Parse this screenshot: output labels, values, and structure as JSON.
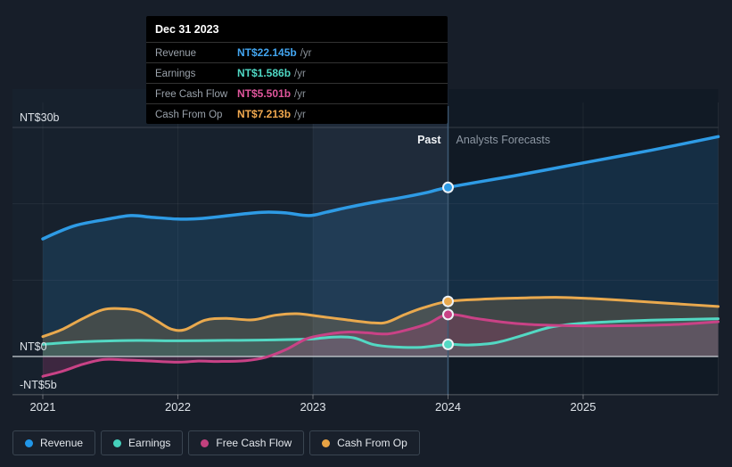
{
  "tooltip": {
    "title": "Dec 31 2023",
    "rows": [
      {
        "label": "Revenue",
        "value": "NT$22.145b",
        "suffix": "/yr",
        "color": "#42a5f0"
      },
      {
        "label": "Earnings",
        "value": "NT$1.586b",
        "suffix": "/yr",
        "color": "#4fd8c4"
      },
      {
        "label": "Free Cash Flow",
        "value": "NT$5.501b",
        "suffix": "/yr",
        "color": "#e0569c"
      },
      {
        "label": "Cash From Op",
        "value": "NT$7.213b",
        "suffix": "/yr",
        "color": "#f2a94f"
      }
    ]
  },
  "legend": {
    "items": [
      {
        "label": "Revenue",
        "color": "#2196e8"
      },
      {
        "label": "Earnings",
        "color": "#45d0bb"
      },
      {
        "label": "Free Cash Flow",
        "color": "#c2417e"
      },
      {
        "label": "Cash From Op",
        "color": "#e8a344"
      }
    ]
  },
  "chart_data": {
    "type": "area",
    "unit": "NT$ billions per year",
    "annotations": {
      "past_label": "Past",
      "forecast_label": "Analysts Forecasts",
      "divider_year": 2024,
      "hover_band_years": [
        2023,
        2024
      ]
    },
    "x_axis": {
      "ticks": [
        2021,
        2022,
        2023,
        2024,
        2025
      ],
      "domain": [
        2021,
        2026
      ]
    },
    "y_axis": {
      "ylim": [
        -5,
        30
      ],
      "labeled_ticks": [
        {
          "value": 30,
          "label": "NT$30b"
        },
        {
          "value": 0,
          "label": "NT$0"
        },
        {
          "value": -5,
          "label": "-NT$5b"
        }
      ],
      "gridlines": [
        30,
        20,
        10
      ],
      "grid": true
    },
    "series": [
      {
        "key": "revenue",
        "name": "Revenue",
        "color": "#2e9be5",
        "fill": "rgba(46,140,210,0.18)",
        "width": 3.5,
        "marker_year": 2024,
        "marker_value": 22.145,
        "past": [
          [
            2021.0,
            15.4
          ],
          [
            2021.1,
            16.2
          ],
          [
            2021.25,
            17.2
          ],
          [
            2021.45,
            17.9
          ],
          [
            2021.65,
            18.45
          ],
          [
            2021.8,
            18.25
          ],
          [
            2022.0,
            18.0
          ],
          [
            2022.15,
            18.05
          ],
          [
            2022.3,
            18.3
          ],
          [
            2022.5,
            18.7
          ],
          [
            2022.65,
            18.9
          ],
          [
            2022.8,
            18.8
          ],
          [
            2022.97,
            18.45
          ],
          [
            2023.1,
            18.9
          ],
          [
            2023.25,
            19.5
          ],
          [
            2023.45,
            20.2
          ],
          [
            2023.65,
            20.8
          ],
          [
            2023.85,
            21.5
          ],
          [
            2024.0,
            22.145
          ]
        ],
        "forecast": [
          [
            2024.0,
            22.145
          ],
          [
            2024.5,
            23.7
          ],
          [
            2025.0,
            25.35
          ],
          [
            2025.5,
            27.0
          ],
          [
            2026.0,
            28.8
          ]
        ]
      },
      {
        "key": "cash-from-op",
        "name": "Cash From Op",
        "color": "#e9a94e",
        "fill": "rgba(233,169,78,0.20)",
        "width": 3,
        "marker_year": 2024,
        "marker_value": 7.213,
        "past": [
          [
            2021.0,
            2.6
          ],
          [
            2021.15,
            3.6
          ],
          [
            2021.3,
            5.0
          ],
          [
            2021.45,
            6.15
          ],
          [
            2021.6,
            6.25
          ],
          [
            2021.72,
            5.9
          ],
          [
            2021.85,
            4.6
          ],
          [
            2021.95,
            3.6
          ],
          [
            2022.05,
            3.5
          ],
          [
            2022.2,
            4.75
          ],
          [
            2022.35,
            5.0
          ],
          [
            2022.55,
            4.8
          ],
          [
            2022.72,
            5.4
          ],
          [
            2022.88,
            5.6
          ],
          [
            2023.05,
            5.25
          ],
          [
            2023.25,
            4.8
          ],
          [
            2023.45,
            4.4
          ],
          [
            2023.55,
            4.5
          ],
          [
            2023.68,
            5.5
          ],
          [
            2023.82,
            6.4
          ],
          [
            2024.0,
            7.213
          ]
        ],
        "forecast": [
          [
            2024.0,
            7.213
          ],
          [
            2024.25,
            7.5
          ],
          [
            2024.5,
            7.65
          ],
          [
            2024.8,
            7.75
          ],
          [
            2025.05,
            7.6
          ],
          [
            2025.3,
            7.35
          ],
          [
            2025.6,
            7.0
          ],
          [
            2026.0,
            6.55
          ]
        ]
      },
      {
        "key": "earnings",
        "name": "Earnings",
        "color": "#53d8c3",
        "fill": "rgba(83,216,195,0.15)",
        "width": 3,
        "marker_year": 2024,
        "marker_value": 1.586,
        "past": [
          [
            2021.0,
            1.6
          ],
          [
            2021.2,
            1.85
          ],
          [
            2021.4,
            2.0
          ],
          [
            2021.7,
            2.1
          ],
          [
            2022.0,
            2.05
          ],
          [
            2022.3,
            2.1
          ],
          [
            2022.6,
            2.15
          ],
          [
            2022.9,
            2.25
          ],
          [
            2023.0,
            2.3
          ],
          [
            2023.15,
            2.55
          ],
          [
            2023.3,
            2.45
          ],
          [
            2023.45,
            1.55
          ],
          [
            2023.6,
            1.25
          ],
          [
            2023.8,
            1.2
          ],
          [
            2024.0,
            1.586
          ]
        ],
        "forecast": [
          [
            2024.0,
            1.586
          ],
          [
            2024.15,
            1.5
          ],
          [
            2024.35,
            1.8
          ],
          [
            2024.55,
            2.75
          ],
          [
            2024.75,
            3.8
          ],
          [
            2024.95,
            4.3
          ],
          [
            2025.2,
            4.55
          ],
          [
            2025.5,
            4.75
          ],
          [
            2026.0,
            4.95
          ]
        ]
      },
      {
        "key": "free-cash-flow",
        "name": "Free Cash Flow",
        "color": "#c94286",
        "fill": "rgba(201,66,134,0.22)",
        "width": 3,
        "marker_year": 2024,
        "marker_value": 5.501,
        "past": [
          [
            2021.0,
            -2.6
          ],
          [
            2021.15,
            -1.9
          ],
          [
            2021.3,
            -1.0
          ],
          [
            2021.45,
            -0.4
          ],
          [
            2021.6,
            -0.45
          ],
          [
            2021.75,
            -0.55
          ],
          [
            2022.0,
            -0.75
          ],
          [
            2022.15,
            -0.6
          ],
          [
            2022.3,
            -0.65
          ],
          [
            2022.5,
            -0.55
          ],
          [
            2022.65,
            -0.1
          ],
          [
            2022.8,
            0.9
          ],
          [
            2022.95,
            2.3
          ],
          [
            2023.1,
            2.9
          ],
          [
            2023.25,
            3.2
          ],
          [
            2023.4,
            3.1
          ],
          [
            2023.55,
            2.95
          ],
          [
            2023.7,
            3.5
          ],
          [
            2023.85,
            4.3
          ],
          [
            2024.0,
            5.501
          ]
        ],
        "forecast": [
          [
            2024.0,
            5.501
          ],
          [
            2024.2,
            5.0
          ],
          [
            2024.4,
            4.5
          ],
          [
            2024.6,
            4.2
          ],
          [
            2024.85,
            4.05
          ],
          [
            2025.1,
            4.0
          ],
          [
            2025.4,
            4.05
          ],
          [
            2025.7,
            4.2
          ],
          [
            2026.0,
            4.55
          ]
        ]
      }
    ]
  }
}
